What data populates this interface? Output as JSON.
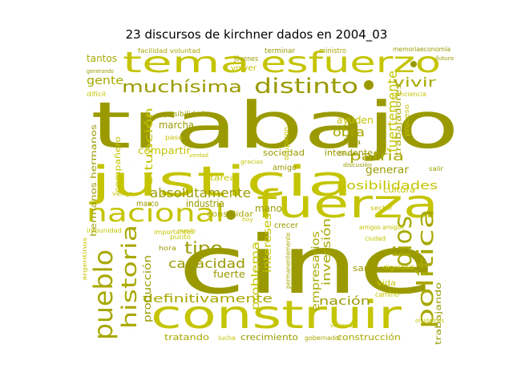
{
  "title": "23 discursos de kirchner dados en 2004_03",
  "colors": {
    "background": "#ffffff",
    "dark": "#9a9a00",
    "mid": "#a8a800",
    "light": "#c4c400",
    "pale": "#d2d24c",
    "faint": "#dcdc80"
  },
  "words": [
    {
      "text": "trabajo",
      "tone": "dark"
    },
    {
      "text": "cine",
      "tone": "dark"
    },
    {
      "text": "justicia",
      "tone": "light"
    },
    {
      "text": "construir",
      "tone": "light"
    },
    {
      "text": "fuerza",
      "tone": "light"
    },
    {
      "text": "tema",
      "tone": "light"
    },
    {
      "text": "esfuerzo",
      "tone": "light"
    },
    {
      "text": "nacional",
      "tone": "light"
    },
    {
      "text": "pueblo",
      "tone": "mid"
    },
    {
      "text": "historia",
      "tone": "mid"
    },
    {
      "text": "política",
      "tone": "mid"
    },
    {
      "text": "distinto",
      "tone": "dark"
    },
    {
      "text": "muchísima",
      "tone": "dark"
    },
    {
      "text": "dios",
      "tone": "mid"
    },
    {
      "text": "absolutamente",
      "tone": "dark"
    },
    {
      "text": "definitivamente",
      "tone": "mid"
    },
    {
      "text": "capacidad",
      "tone": "dark"
    },
    {
      "text": "posibilidades",
      "tone": "light"
    },
    {
      "text": "patria",
      "tone": "mid"
    },
    {
      "text": "tipo",
      "tone": "dark"
    },
    {
      "text": "fuertemente",
      "tone": "light"
    },
    {
      "text": "situación",
      "tone": "light"
    },
    {
      "text": "vivir",
      "tone": "mid"
    },
    {
      "text": "obra",
      "tone": "mid"
    },
    {
      "text": "gente",
      "tone": "mid"
    },
    {
      "text": "nación",
      "tone": "dark"
    },
    {
      "text": "generar",
      "tone": "dark"
    },
    {
      "text": "inversión",
      "tone": "mid"
    },
    {
      "text": "empresarios",
      "tone": "mid"
    },
    {
      "text": "problema",
      "tone": "light"
    },
    {
      "text": "intereses",
      "tone": "light"
    },
    {
      "text": "producción",
      "tone": "dark"
    },
    {
      "text": "crecimiento",
      "tone": "dark"
    },
    {
      "text": "construcción",
      "tone": "mid"
    },
    {
      "text": "tratando",
      "tone": "mid"
    },
    {
      "text": "trabajando",
      "tone": "dark"
    },
    {
      "text": "san juan",
      "tone": "dark"
    },
    {
      "text": "mano",
      "tone": "dark"
    },
    {
      "text": "marcha",
      "tone": "dark"
    },
    {
      "text": "fuerte",
      "tone": "dark"
    },
    {
      "text": "industria",
      "tone": "dark"
    },
    {
      "text": "sociedad",
      "tone": "dark"
    },
    {
      "text": "intendente",
      "tone": "dark"
    },
    {
      "text": "compartir",
      "tone": "light"
    },
    {
      "text": "ayuden",
      "tone": "light"
    },
    {
      "text": "cultura",
      "tone": "light"
    },
    {
      "text": "tantos",
      "tone": "mid"
    },
    {
      "text": "hermanos hermanos",
      "tone": "dark"
    },
    {
      "text": "trabajadores",
      "tone": "mid"
    },
    {
      "text": "consolidar",
      "tone": "mid"
    },
    {
      "text": "compañero",
      "tone": "light"
    },
    {
      "text": "vida",
      "tone": "light"
    },
    {
      "text": "crecer",
      "tone": "dark"
    },
    {
      "text": "camino",
      "tone": "light"
    },
    {
      "text": "tarea",
      "tone": "light"
    },
    {
      "text": "idea",
      "tone": "dark"
    },
    {
      "text": "amigo",
      "tone": "dark"
    },
    {
      "text": "volver",
      "tone": "light"
    },
    {
      "text": "jóvenes",
      "tone": "dark"
    },
    {
      "text": "terminar",
      "tone": "dark"
    },
    {
      "text": "ministro",
      "tone": "mid"
    },
    {
      "text": "memoria",
      "tone": "dark"
    },
    {
      "text": "economía",
      "tone": "dark"
    },
    {
      "text": "posibilidad",
      "tone": "dark"
    },
    {
      "text": "gobernador",
      "tone": "mid"
    },
    {
      "text": "lucha",
      "tone": "light"
    },
    {
      "text": "marco",
      "tone": "dark"
    },
    {
      "text": "hora",
      "tone": "dark"
    },
    {
      "text": "punto",
      "tone": "light"
    },
    {
      "text": "sector",
      "tone": "light"
    },
    {
      "text": "ocuparon",
      "tone": "light"
    },
    {
      "text": "importantes",
      "tone": "light"
    },
    {
      "text": "salir",
      "tone": "dark"
    },
    {
      "text": "amigos amigos",
      "tone": "light"
    },
    {
      "text": "permanentemente",
      "tone": "mid"
    },
    {
      "text": "paso",
      "tone": "light"
    },
    {
      "text": "ciudad",
      "tone": "light"
    },
    {
      "text": "proceso",
      "tone": "light"
    },
    {
      "text": "conciencia",
      "tone": "light"
    },
    {
      "text": "dignidad",
      "tone": "light"
    },
    {
      "text": "impunidad",
      "tone": "light"
    },
    {
      "text": "difícil",
      "tone": "light"
    },
    {
      "text": "facilidad voluntad",
      "tone": "mid"
    },
    {
      "text": "futuro",
      "tone": "dark"
    },
    {
      "text": "argentinos",
      "tone": "light"
    },
    {
      "text": "generando",
      "tone": "dark"
    },
    {
      "text": "olvidemos",
      "tone": "light"
    },
    {
      "text": "vengo",
      "tone": "light"
    },
    {
      "text": "mundo",
      "tone": "light"
    },
    {
      "text": "discusión",
      "tone": "dark"
    },
    {
      "text": "deuda",
      "tone": "dark"
    },
    {
      "text": "gracias",
      "tone": "light"
    },
    {
      "text": "hoy",
      "tone": "light"
    },
    {
      "text": "vivienda",
      "tone": "light"
    },
    {
      "text": "verdad",
      "tone": "light"
    }
  ]
}
